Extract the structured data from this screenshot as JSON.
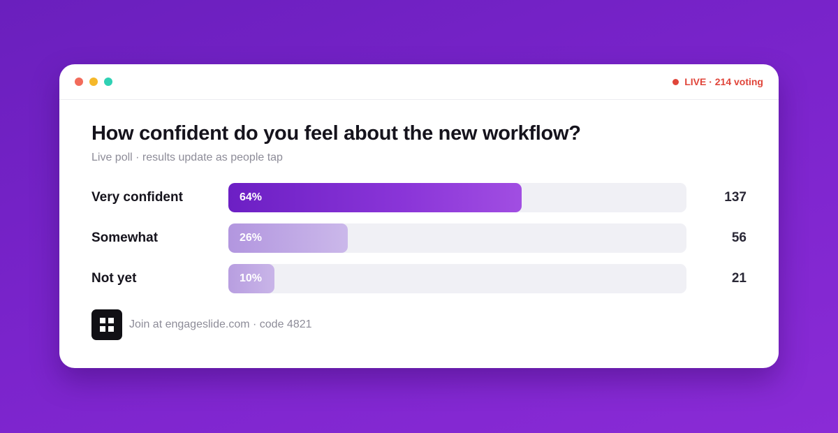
{
  "window": {
    "dot_colors": [
      "#f26b5b",
      "#f5b82a",
      "#2fd1b4"
    ],
    "live_label": "LIVE · 214 voting",
    "live_color": "#e0453a"
  },
  "poll": {
    "question": "How confident do you feel about the new workflow?",
    "subtitle": "Live poll · results update as people tap",
    "options": [
      {
        "label": "Very confident",
        "percent_label": "64%",
        "percent": 64,
        "count": "137",
        "color": "#7a2ad6"
      },
      {
        "label": "Somewhat",
        "percent_label": "26%",
        "percent": 26,
        "count": "56",
        "color": "#b79ce0"
      },
      {
        "label": "Not yet",
        "percent_label": "10%",
        "percent": 10,
        "count": "21",
        "color": "#c3ade6"
      }
    ]
  },
  "footer": {
    "qr_icon": "qr-code-icon",
    "join_text": "Join at engageslide.com · code 4821"
  }
}
